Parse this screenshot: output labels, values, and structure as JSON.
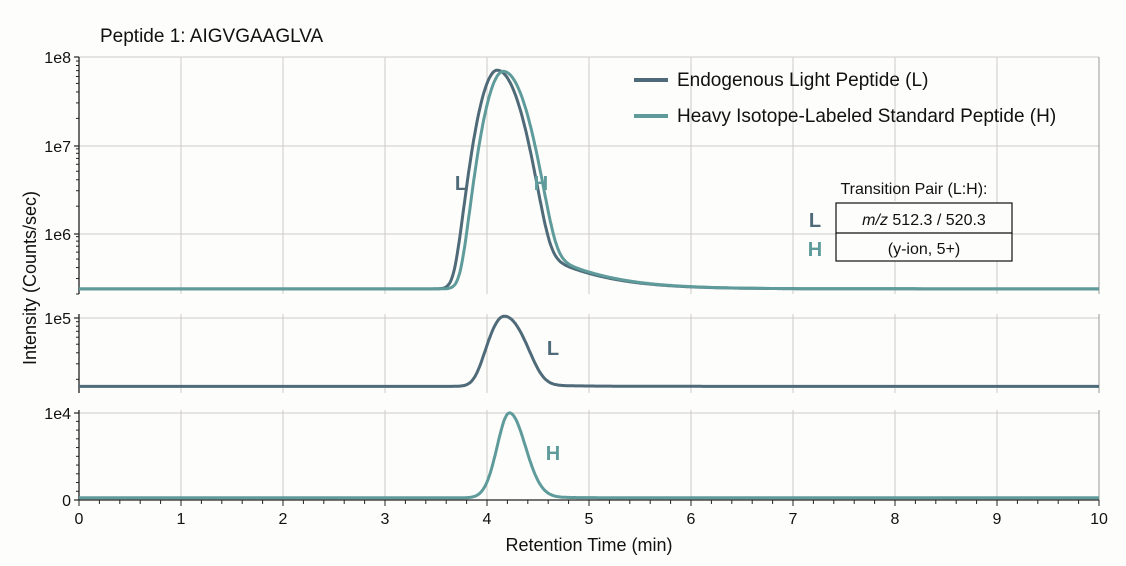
{
  "chart_data": {
    "type": "line",
    "title": "Peptide 1: AIGVGAAGLVA",
    "xlabel": "Retention Time (min)",
    "ylabel": "Intensity (Counts/sec)",
    "xlim": [
      0,
      10
    ],
    "xticks": [
      "0",
      "1",
      "2",
      "3",
      "4",
      "5",
      "6",
      "7",
      "8",
      "9",
      "10"
    ],
    "grid": true,
    "legend_position": "top-right",
    "colors": {
      "L": "#4f6a78",
      "H": "#5f9b9b"
    },
    "legend": [
      {
        "key": "L",
        "label": "Endogenous Light Peptide (L)"
      },
      {
        "key": "H",
        "label": "Heavy Isotope-Labeled Standard Peptide (H)"
      }
    ],
    "transition_table": {
      "title": "Transition Pair (L:H):",
      "rows": [
        {
          "key": "L",
          "prefix": "m/z",
          "value": " 512.3 / 520.3"
        },
        {
          "key": "H",
          "prefix": "",
          "value": "(y-ion, 5+)"
        }
      ]
    },
    "panels": [
      {
        "scale": "log",
        "ylim": [
          200000,
          100000000
        ],
        "yticks": [
          "1e8",
          "1e7",
          "1e6"
        ],
        "series": [
          {
            "key": "L",
            "peak_rt": 4.1,
            "peak_intensity": 68000000,
            "baseline": 220000
          },
          {
            "key": "H",
            "peak_rt": 4.16,
            "peak_intensity": 66000000,
            "baseline": 220000
          }
        ],
        "labels": [
          {
            "key": "L",
            "text": "L"
          },
          {
            "key": "H",
            "text": "H"
          }
        ]
      },
      {
        "scale": "log",
        "ylim": [
          14000,
          110000
        ],
        "yticks": [
          "1e5"
        ],
        "series": [
          {
            "key": "L",
            "peak_rt": 4.17,
            "peak_intensity": 100000,
            "baseline": 16000
          }
        ],
        "labels": [
          {
            "key": "L",
            "text": "L"
          }
        ]
      },
      {
        "scale": "linear",
        "ylim": [
          0,
          10300
        ],
        "yticks": [
          "1e4",
          "0"
        ],
        "series": [
          {
            "key": "H",
            "peak_rt": 4.22,
            "peak_intensity": 9800,
            "baseline": 80
          }
        ],
        "labels": [
          {
            "key": "H",
            "text": "H"
          }
        ]
      }
    ]
  }
}
